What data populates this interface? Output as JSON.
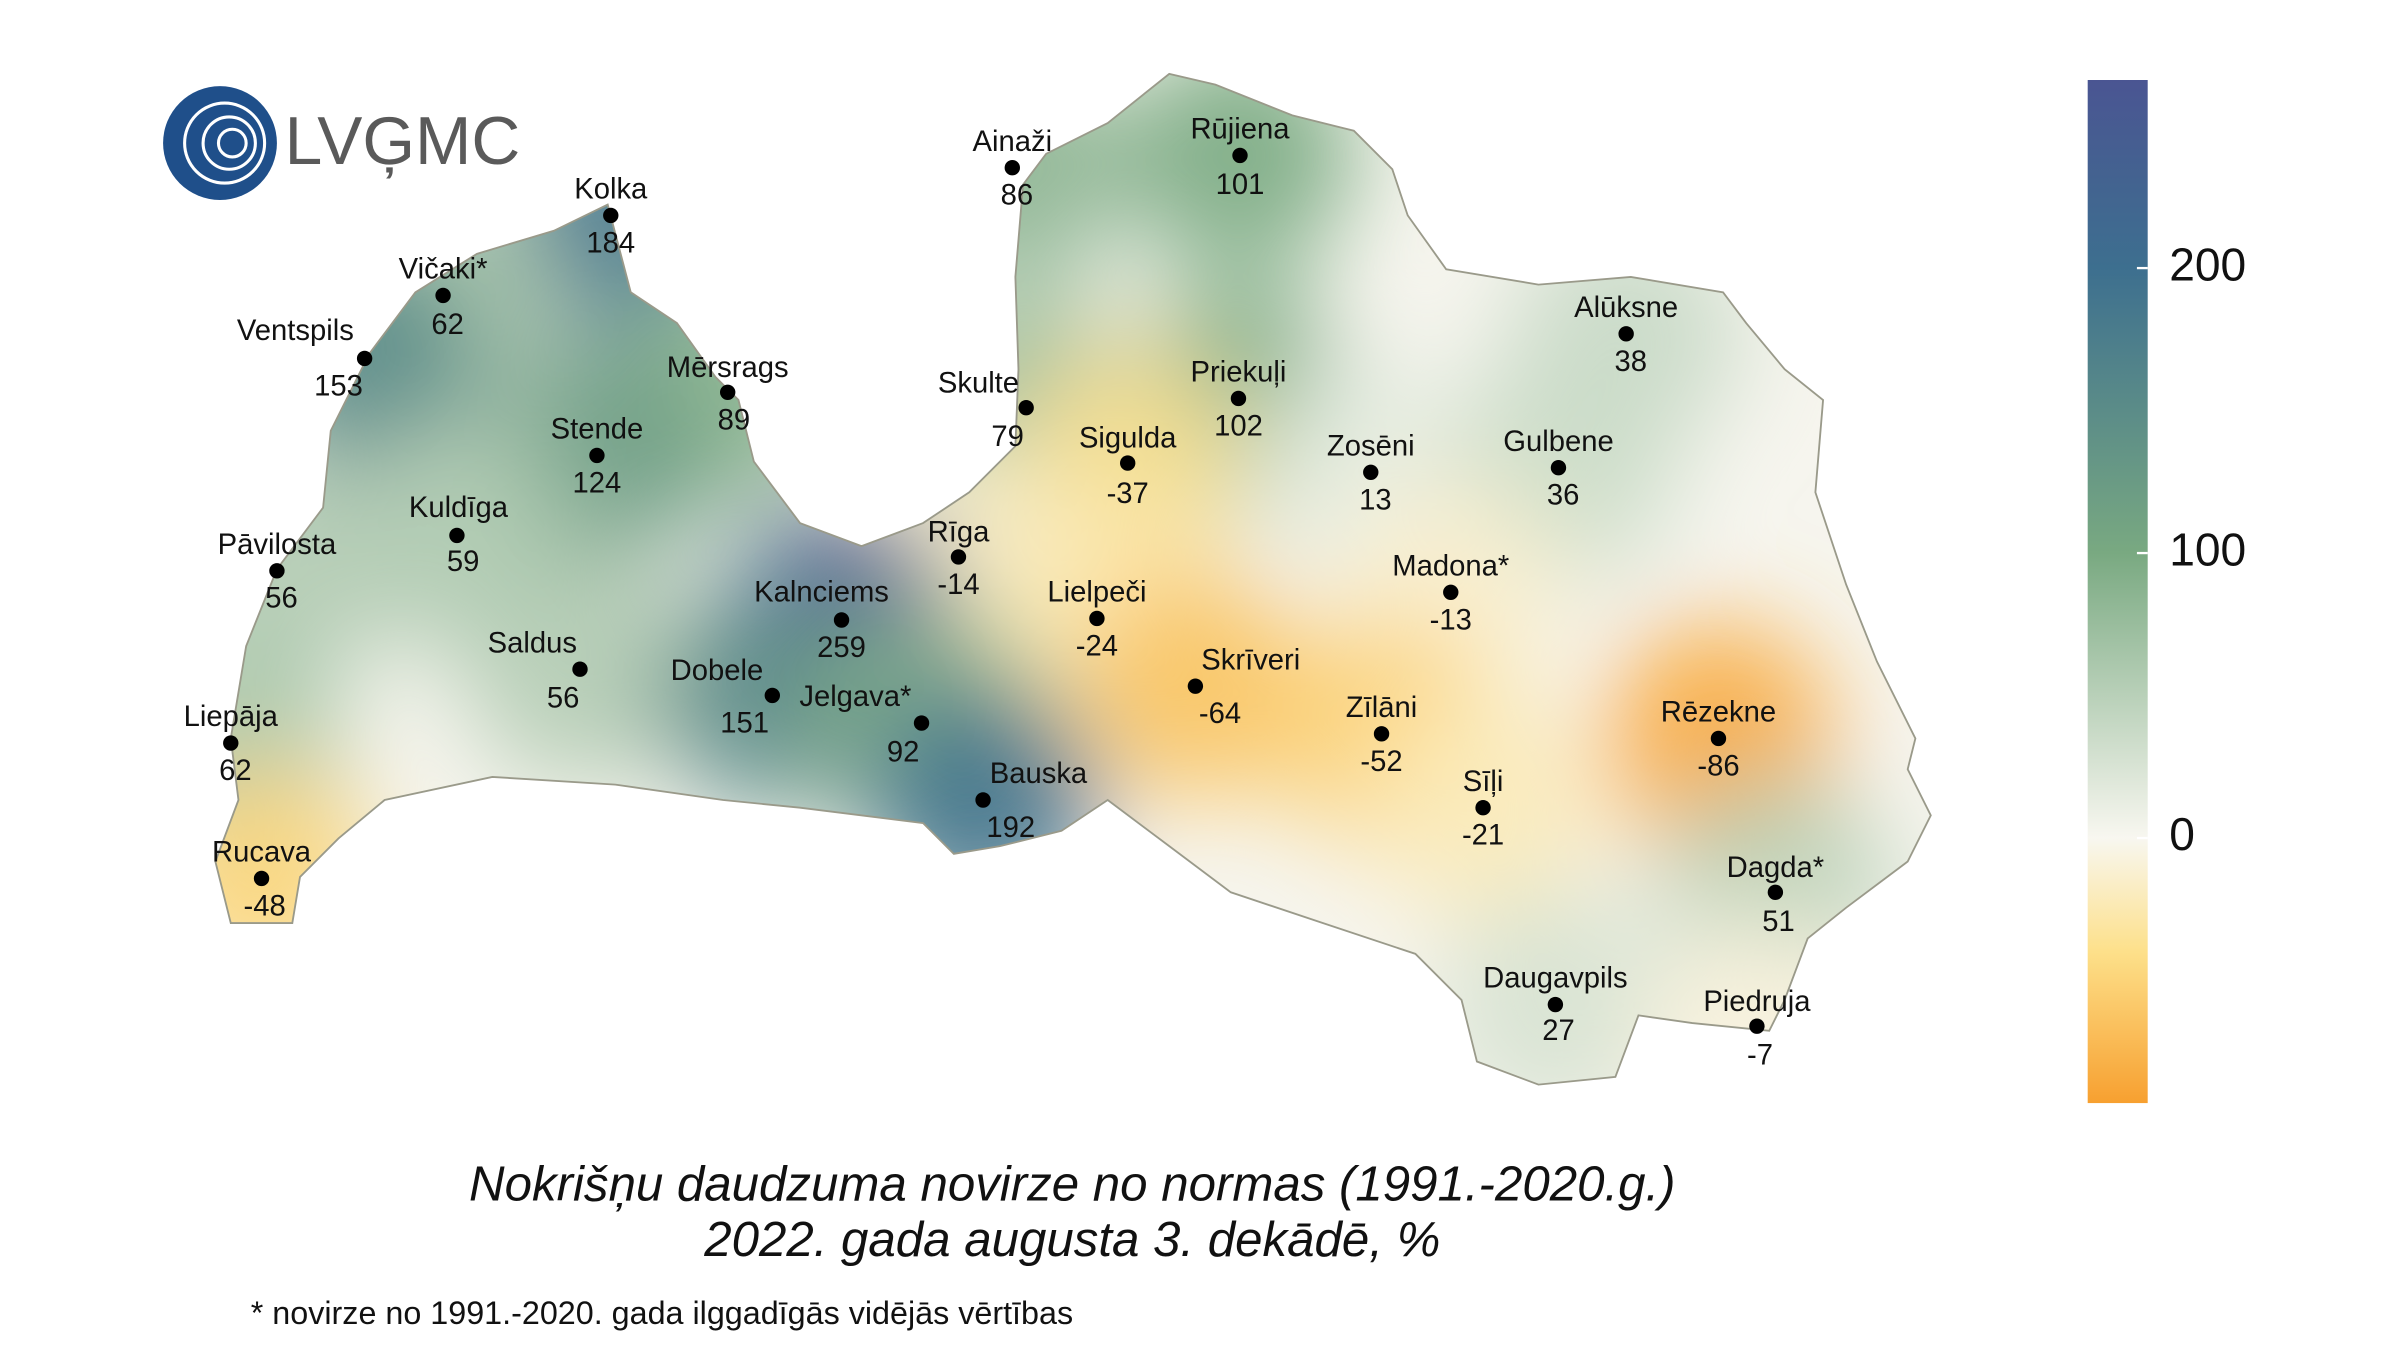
{
  "logo": "LVĢMC",
  "stations": [
    {
      "name": "Ainaži",
      "value": 86
    },
    {
      "name": "Rūjiena",
      "value": 101
    },
    {
      "name": "Kolka",
      "value": 184
    },
    {
      "name": "Vičaki*",
      "value": 62
    },
    {
      "name": "Ventspils",
      "value": 153
    },
    {
      "name": "Mērsrags",
      "value": 89
    },
    {
      "name": "Skulte",
      "value": 79
    },
    {
      "name": "Priekuļi",
      "value": 102
    },
    {
      "name": "Alūksne",
      "value": 38
    },
    {
      "name": "Stende",
      "value": 124
    },
    {
      "name": "Sigulda",
      "value": -37
    },
    {
      "name": "Zosēni",
      "value": 13
    },
    {
      "name": "Gulbene",
      "value": 36
    },
    {
      "name": "Kuldīga",
      "value": 59
    },
    {
      "name": "Pāvilosta",
      "value": 56
    },
    {
      "name": "Rīga",
      "value": -14
    },
    {
      "name": "Madona*",
      "value": -13
    },
    {
      "name": "Kalnciems",
      "value": 259
    },
    {
      "name": "Lielpeči",
      "value": -24
    },
    {
      "name": "Saldus",
      "value": 56
    },
    {
      "name": "Skrīveri",
      "value": -64
    },
    {
      "name": "Dobele",
      "value": 151
    },
    {
      "name": "Jelgava*",
      "value": 92
    },
    {
      "name": "Zīlāni",
      "value": -52
    },
    {
      "name": "Rēzekne",
      "value": -86
    },
    {
      "name": "Liepāja",
      "value": 62
    },
    {
      "name": "Bauska",
      "value": 192
    },
    {
      "name": "Sīļi",
      "value": -21
    },
    {
      "name": "Rucava",
      "value": -48
    },
    {
      "name": "Dagda*",
      "value": 51
    },
    {
      "name": "Daugavpils",
      "value": 27
    },
    {
      "name": "Piedruja",
      "value": -7
    }
  ],
  "colorbar": {
    "range": [
      -93,
      266
    ],
    "ticks": [
      200,
      100,
      0
    ],
    "stops": [
      {
        "value": -93,
        "color": "#f7a030"
      },
      {
        "value": -40,
        "color": "#fde08a"
      },
      {
        "value": 0,
        "color": "#f8f7f0"
      },
      {
        "value": 100,
        "color": "#79a981"
      },
      {
        "value": 200,
        "color": "#3d6f8f"
      },
      {
        "value": 266,
        "color": "#4a5592"
      }
    ]
  },
  "title": [
    "Nokrišņu daudzuma novirze no normas (1991.-2020.g.)",
    "2022. gada augusta 3. dekādē, %"
  ],
  "footnote": "* novirze no 1991.-2020. gada ilggadīgās vidējās vērtības"
}
